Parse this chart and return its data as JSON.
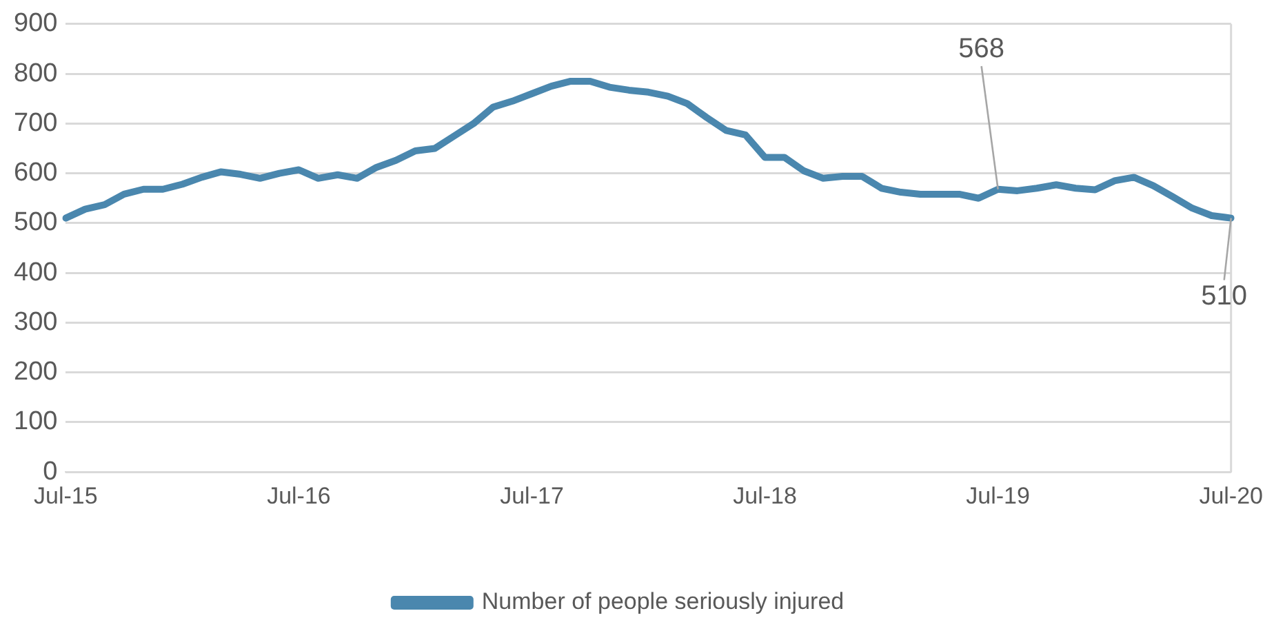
{
  "chart_data": {
    "type": "line",
    "categories": [
      "Jul-15",
      null,
      null,
      null,
      null,
      null,
      null,
      null,
      null,
      null,
      null,
      null,
      "Jul-16",
      null,
      null,
      null,
      null,
      null,
      null,
      null,
      null,
      null,
      null,
      null,
      "Jul-17",
      null,
      null,
      null,
      null,
      null,
      null,
      null,
      null,
      null,
      null,
      null,
      "Jul-18",
      null,
      null,
      null,
      null,
      null,
      null,
      null,
      null,
      null,
      null,
      null,
      "Jul-19",
      null,
      null,
      null,
      null,
      null,
      null,
      null,
      null,
      null,
      null,
      null,
      "Jul-20"
    ],
    "series": [
      {
        "name": "Number of people seriously injured",
        "color": "#4a87ae",
        "values": [
          510,
          528,
          537,
          558,
          568,
          568,
          578,
          592,
          603,
          598,
          590,
          600,
          607,
          590,
          597,
          590,
          612,
          626,
          645,
          650,
          675,
          700,
          733,
          745,
          760,
          775,
          785,
          785,
          773,
          767,
          763,
          755,
          740,
          712,
          686,
          677,
          632,
          632,
          605,
          590,
          594,
          594,
          570,
          562,
          558,
          558,
          558,
          550,
          568,
          565,
          570,
          577,
          570,
          567,
          585,
          592,
          575,
          553,
          530,
          515,
          510
        ]
      }
    ],
    "ylim": [
      0,
      900
    ],
    "yticks": [
      0,
      100,
      200,
      300,
      400,
      500,
      600,
      700,
      800,
      900
    ],
    "grid": "y",
    "legend": "bottom",
    "marker": "none",
    "line_style": "solid",
    "annotations": [
      {
        "text": "568",
        "x": "Jul-19",
        "y": 568
      },
      {
        "text": "510",
        "x": "Jul-20",
        "y": 510
      }
    ]
  }
}
